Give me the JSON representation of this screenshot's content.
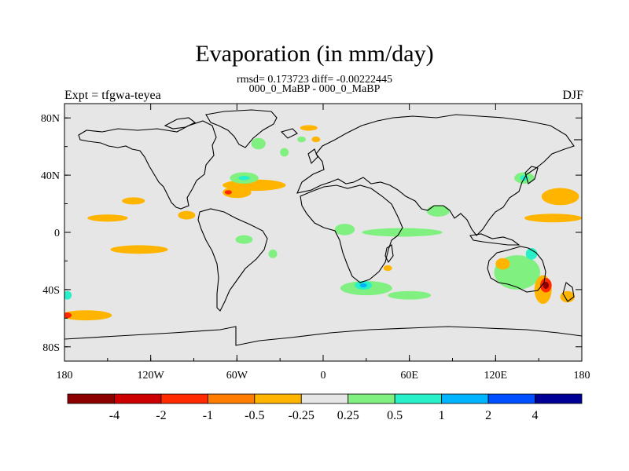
{
  "title": "Evaporation (in mm/day)",
  "stats": "rmsd= 0.173723 diff= -0.00222445",
  "case_label": "000_0_MaBP - 000_0_MaBP",
  "left_title": "Expt = tfgwa-teyea",
  "season": "DJF",
  "map": {
    "lon_range": [
      -180,
      180
    ],
    "lat_range": [
      -90,
      90
    ],
    "lat_ticks": [
      {
        "value": 80,
        "label": "80N"
      },
      {
        "value": 40,
        "label": "40N"
      },
      {
        "value": 0,
        "label": "0"
      },
      {
        "value": -40,
        "label": "40S"
      },
      {
        "value": -80,
        "label": "80S"
      }
    ],
    "lon_ticks": [
      {
        "value": -180,
        "label": "180"
      },
      {
        "value": -120,
        "label": "120W"
      },
      {
        "value": -60,
        "label": "60W"
      },
      {
        "value": 0,
        "label": "0"
      },
      {
        "value": 60,
        "label": "60E"
      },
      {
        "value": 120,
        "label": "120E"
      },
      {
        "value": 180,
        "label": "180"
      }
    ],
    "background_color": "#e6e6e6"
  },
  "colorbar": {
    "colors": [
      "#8c0000",
      "#cc0000",
      "#ff2a00",
      "#ff7d00",
      "#ffb400",
      "#e6e6e6",
      "#80f080",
      "#28f0c8",
      "#00b4ff",
      "#0050ff",
      "#000096"
    ],
    "labels": [
      "-4",
      "-2",
      "-1",
      "-0.5",
      "-0.25",
      "0.25",
      "0.5",
      "1",
      "2",
      "4"
    ]
  },
  "anomalies": [
    {
      "lon": -150,
      "lat": 10,
      "rx": 14,
      "ry": 2.5,
      "level": 4
    },
    {
      "lon": -132,
      "lat": 22,
      "rx": 8,
      "ry": 2.5,
      "level": 4
    },
    {
      "lon": -128,
      "lat": -12,
      "rx": 20,
      "ry": 3,
      "level": 4
    },
    {
      "lon": -165,
      "lat": -58,
      "rx": 18,
      "ry": 3.5,
      "level": 4
    },
    {
      "lon": -178,
      "lat": -58,
      "rx": 3,
      "ry": 2,
      "level": 2
    },
    {
      "lon": -178,
      "lat": -44,
      "rx": 3,
      "ry": 3,
      "level": 7
    },
    {
      "lon": -95,
      "lat": 12,
      "rx": 6,
      "ry": 3,
      "level": 4
    },
    {
      "lon": -60,
      "lat": 28,
      "rx": 10,
      "ry": 4,
      "level": 4
    },
    {
      "lon": -66,
      "lat": 28,
      "rx": 2.5,
      "ry": 1.5,
      "level": 2
    },
    {
      "lon": -48,
      "lat": 33,
      "rx": 22,
      "ry": 4,
      "level": 4
    },
    {
      "lon": -55,
      "lat": 38,
      "rx": 10,
      "ry": 4,
      "level": 6
    },
    {
      "lon": -55,
      "lat": 38,
      "rx": 4,
      "ry": 1.5,
      "level": 7
    },
    {
      "lon": -45,
      "lat": 62,
      "rx": 5,
      "ry": 4,
      "level": 6
    },
    {
      "lon": -10,
      "lat": 73,
      "rx": 6,
      "ry": 2,
      "level": 4
    },
    {
      "lon": -5,
      "lat": 65,
      "rx": 3,
      "ry": 2,
      "level": 4
    },
    {
      "lon": -15,
      "lat": 65,
      "rx": 3,
      "ry": 2,
      "level": 6
    },
    {
      "lon": -27,
      "lat": 56,
      "rx": 3,
      "ry": 3,
      "level": 6
    },
    {
      "lon": -55,
      "lat": -5,
      "rx": 6,
      "ry": 3,
      "level": 6
    },
    {
      "lon": -35,
      "lat": -15,
      "rx": 3,
      "ry": 3,
      "level": 6
    },
    {
      "lon": 15,
      "lat": 2,
      "rx": 7,
      "ry": 4,
      "level": 6
    },
    {
      "lon": 55,
      "lat": 0,
      "rx": 28,
      "ry": 3,
      "level": 6
    },
    {
      "lon": 80,
      "lat": 15,
      "rx": 8,
      "ry": 4,
      "level": 6
    },
    {
      "lon": 30,
      "lat": -39,
      "rx": 18,
      "ry": 5,
      "level": 6
    },
    {
      "lon": 28,
      "lat": -37,
      "rx": 6,
      "ry": 3,
      "level": 7
    },
    {
      "lon": 28,
      "lat": -37,
      "rx": 2.5,
      "ry": 1.5,
      "level": 8
    },
    {
      "lon": 60,
      "lat": -44,
      "rx": 15,
      "ry": 3,
      "level": 6
    },
    {
      "lon": 45,
      "lat": -25,
      "rx": 3,
      "ry": 2,
      "level": 4
    },
    {
      "lon": 140,
      "lat": 38,
      "rx": 7,
      "ry": 4,
      "level": 6
    },
    {
      "lon": 140,
      "lat": 38,
      "rx": 3,
      "ry": 2,
      "level": 7
    },
    {
      "lon": 165,
      "lat": 25,
      "rx": 13,
      "ry": 6,
      "level": 4
    },
    {
      "lon": 160,
      "lat": 10,
      "rx": 20,
      "ry": 3,
      "level": 4
    },
    {
      "lon": 135,
      "lat": -28,
      "rx": 16,
      "ry": 12,
      "level": 6
    },
    {
      "lon": 125,
      "lat": -22,
      "rx": 5,
      "ry": 4,
      "level": 4
    },
    {
      "lon": 145,
      "lat": -15,
      "rx": 4,
      "ry": 4,
      "level": 7
    },
    {
      "lon": 153,
      "lat": -40,
      "rx": 6,
      "ry": 10,
      "level": 4
    },
    {
      "lon": 155,
      "lat": -37,
      "rx": 4,
      "ry": 5,
      "level": 2
    },
    {
      "lon": 155,
      "lat": -37,
      "rx": 2,
      "ry": 2.5,
      "level": 0
    },
    {
      "lon": 170,
      "lat": -45,
      "rx": 5,
      "ry": 4,
      "level": 4
    }
  ]
}
